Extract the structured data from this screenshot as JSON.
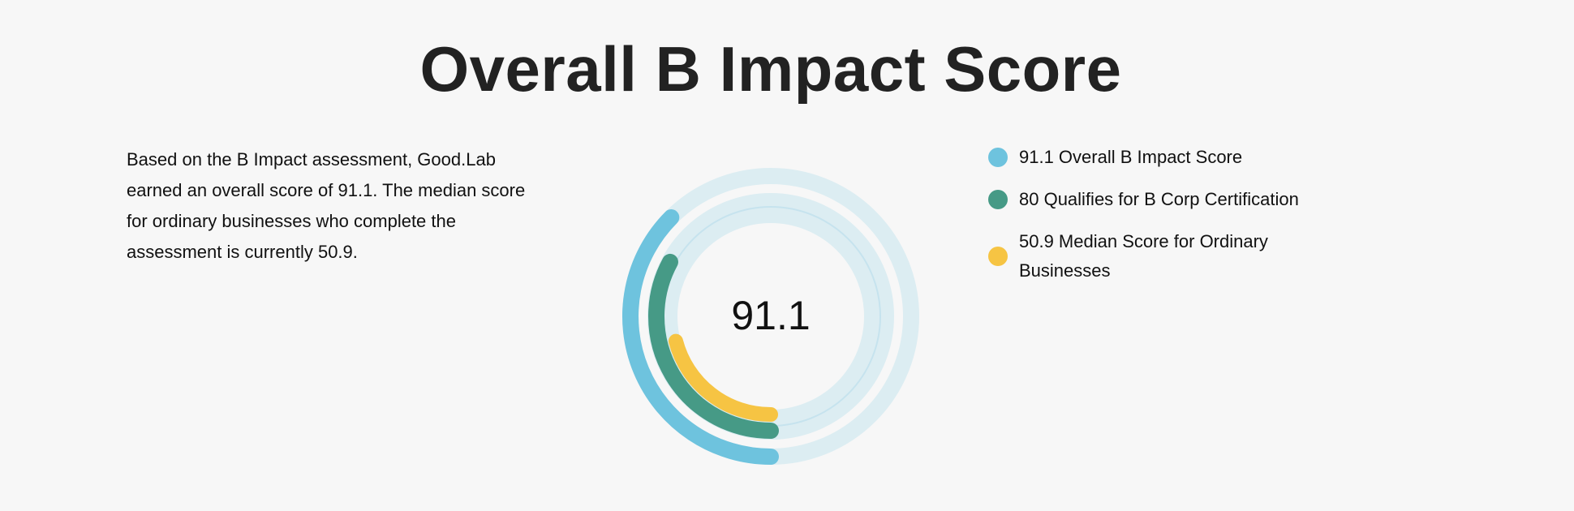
{
  "title": "Overall B Impact Score",
  "description": "Based on the B Impact assessment, Good.Lab earned an overall score of 91.1. The median score for ordinary businesses who complete the assessment is currently 50.9.",
  "chart_data": {
    "type": "radial-bar",
    "title": "Overall B Impact Score",
    "center_label": "91.1",
    "series": [
      {
        "name": "Overall B Impact Score",
        "value": 91.1,
        "label": "91.1 Overall B Impact Score",
        "color": "#6ec3de"
      },
      {
        "name": "Qualifies for B Corp Certification",
        "value": 80,
        "label": "80 Qualifies for B Corp Certification",
        "color": "#469a86"
      },
      {
        "name": "Median Score for Ordinary Businesses",
        "value": 50.9,
        "label": "50.9 Median Score for Ordinary Businesses",
        "color": "#f6c443"
      }
    ],
    "track_color": "#dcedf2",
    "legend_position": "right"
  }
}
